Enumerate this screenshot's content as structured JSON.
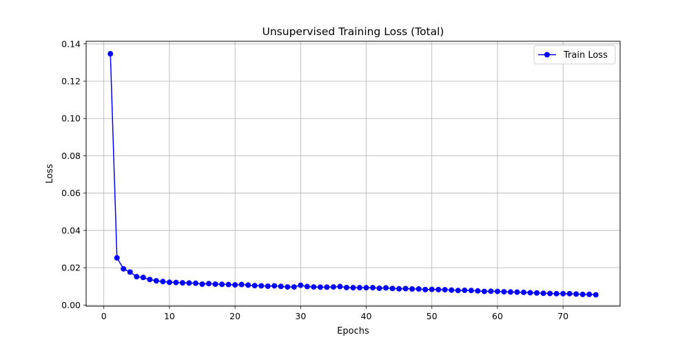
{
  "chart_data": {
    "type": "line",
    "title": "Unsupervised Training Loss (Total)",
    "xlabel": "Epochs",
    "ylabel": "Loss",
    "xlim": [
      -2.7,
      78.7
    ],
    "ylim": [
      -0.0006,
      0.1414
    ],
    "xticks": [
      0,
      10,
      20,
      30,
      40,
      50,
      60,
      70
    ],
    "yticks": [
      0.0,
      0.02,
      0.04,
      0.06,
      0.08,
      0.1,
      0.12,
      0.14
    ],
    "ytick_labels": [
      "0.00",
      "0.02",
      "0.04",
      "0.06",
      "0.08",
      "0.10",
      "0.12",
      "0.14"
    ],
    "grid": true,
    "legend_position": "top-right",
    "series": [
      {
        "name": "Train Loss",
        "color": "#0000ff",
        "marker": "circle",
        "x": [
          1,
          2,
          3,
          4,
          5,
          6,
          7,
          8,
          9,
          10,
          11,
          12,
          13,
          14,
          15,
          16,
          17,
          18,
          19,
          20,
          21,
          22,
          23,
          24,
          25,
          26,
          27,
          28,
          29,
          30,
          31,
          32,
          33,
          34,
          35,
          36,
          37,
          38,
          39,
          40,
          41,
          42,
          43,
          44,
          45,
          46,
          47,
          48,
          49,
          50,
          51,
          52,
          53,
          54,
          55,
          56,
          57,
          58,
          59,
          60,
          61,
          62,
          63,
          64,
          65,
          66,
          67,
          68,
          69,
          70,
          71,
          72,
          73,
          74,
          75
        ],
        "values": [
          0.1347,
          0.0253,
          0.0194,
          0.0177,
          0.0152,
          0.0148,
          0.0137,
          0.013,
          0.0126,
          0.0122,
          0.0121,
          0.0119,
          0.0118,
          0.0117,
          0.0112,
          0.0115,
          0.0112,
          0.0111,
          0.011,
          0.0108,
          0.011,
          0.0107,
          0.0104,
          0.0103,
          0.0101,
          0.0103,
          0.01,
          0.0097,
          0.0097,
          0.0106,
          0.0099,
          0.0097,
          0.0096,
          0.0096,
          0.0097,
          0.0099,
          0.0094,
          0.0093,
          0.0093,
          0.0093,
          0.0093,
          0.009,
          0.0092,
          0.0089,
          0.0087,
          0.0088,
          0.0086,
          0.0086,
          0.0083,
          0.0084,
          0.0083,
          0.0082,
          0.008,
          0.0078,
          0.0079,
          0.0078,
          0.0076,
          0.0073,
          0.0074,
          0.0073,
          0.0071,
          0.007,
          0.0069,
          0.0068,
          0.0066,
          0.0065,
          0.0063,
          0.0062,
          0.0061,
          0.0061,
          0.0061,
          0.0059,
          0.0057,
          0.0057,
          0.0055
        ]
      }
    ]
  }
}
